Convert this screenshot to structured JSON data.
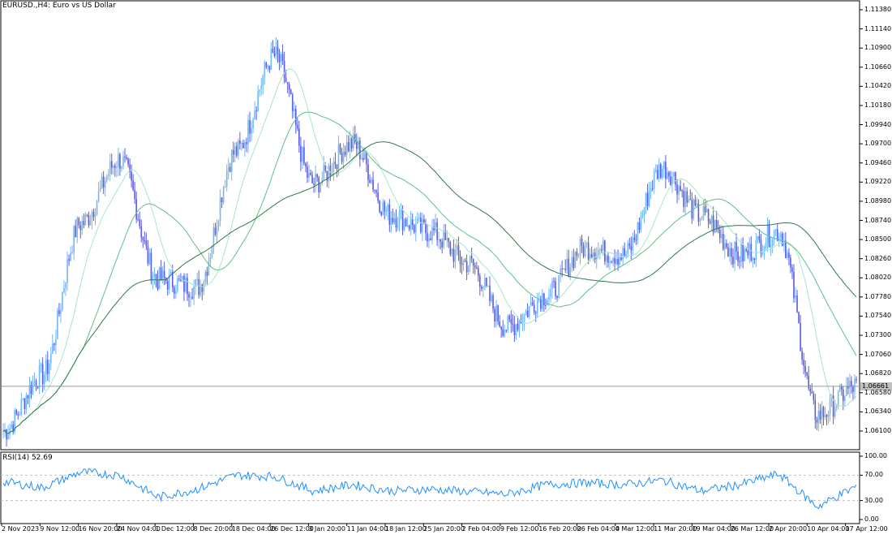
{
  "chart": {
    "title": "EURUSD.,H4: Euro vs US Dollar",
    "symbol": "EURUSD.",
    "timeframe": "H4",
    "current_bid": "1.06661",
    "price_ticks": [
      "1.11380",
      "1.11140",
      "1.10900",
      "1.10660",
      "1.10420",
      "1.10180",
      "1.09940",
      "1.09700",
      "1.09460",
      "1.09220",
      "1.08980",
      "1.08740",
      "1.08500",
      "1.08260",
      "1.08020",
      "1.07780",
      "1.07540",
      "1.07300",
      "1.07060",
      "1.06820",
      "1.06580",
      "1.06340",
      "1.06100"
    ],
    "rsi_label": "RSI(14) 52.69",
    "rsi_ticks": [
      "100.00",
      "70.00",
      "30.00",
      "0.00"
    ],
    "x_ticks": [
      "2 Nov 2023",
      "9 Nov 12:00",
      "16 Nov 20:00",
      "24 Nov 04:00",
      "1 Dec 12:00",
      "8 Dec 20:00",
      "18 Dec 04:00",
      "26 Dec 12:00",
      "3 Jan 20:00",
      "11 Jan 04:00",
      "18 Jan 12:00",
      "25 Jan 20:00",
      "2 Feb 04:00",
      "9 Feb 12:00",
      "16 Feb 20:00",
      "26 Feb 04:00",
      "4 Mar 12:00",
      "11 Mar 20:00",
      "19 Mar 04:00",
      "26 Mar 12:00",
      "2 Apr 20:00",
      "10 Apr 04:00",
      "17 Apr 12:00"
    ],
    "colors": {
      "bull": "#6fb7ff",
      "bear": "#5a5ae6",
      "ma_fast": "#a8e6c8",
      "ma_mid": "#5fbf8a",
      "ma_slow": "#2f7a4a",
      "rsi": "#1e90ff",
      "grid_dashed": "#c0c0c0",
      "bid_line": "#9a9a9a"
    }
  },
  "chart_data": {
    "type": "line",
    "title": "EURUSD.,H4: Euro vs US Dollar",
    "x": [
      "2 Nov 2023",
      "9 Nov 12:00",
      "16 Nov 20:00",
      "24 Nov 04:00",
      "1 Dec 12:00",
      "8 Dec 20:00",
      "18 Dec 04:00",
      "26 Dec 12:00",
      "3 Jan 20:00",
      "11 Jan 04:00",
      "18 Jan 12:00",
      "25 Jan 20:00",
      "2 Feb 04:00",
      "9 Feb 12:00",
      "16 Feb 20:00",
      "26 Feb 04:00",
      "4 Mar 12:00",
      "11 Mar 20:00",
      "19 Mar 04:00",
      "26 Mar 12:00",
      "2 Apr 20:00",
      "10 Apr 04:00",
      "17 Apr 12:00"
    ],
    "series": [
      {
        "values": [
          1.061,
          1.068,
          1.087,
          1.095,
          1.08,
          1.079,
          1.096,
          1.108,
          1.092,
          1.097,
          1.088,
          1.086,
          1.082,
          1.074,
          1.078,
          1.084,
          1.083,
          1.094,
          1.088,
          1.083,
          1.086,
          1.063,
          1.0666
        ]
      }
    ],
    "ylim": [
      1.059,
      1.1145
    ],
    "rsi": [
      {
        "values": [
          60,
          50,
          75,
          70,
          35,
          48,
          70,
          68,
          45,
          55,
          45,
          48,
          44,
          40,
          55,
          58,
          55,
          62,
          45,
          55,
          72,
          20,
          52.69
        ]
      }
    ],
    "rsi_ylim": [
      0,
      100
    ]
  }
}
